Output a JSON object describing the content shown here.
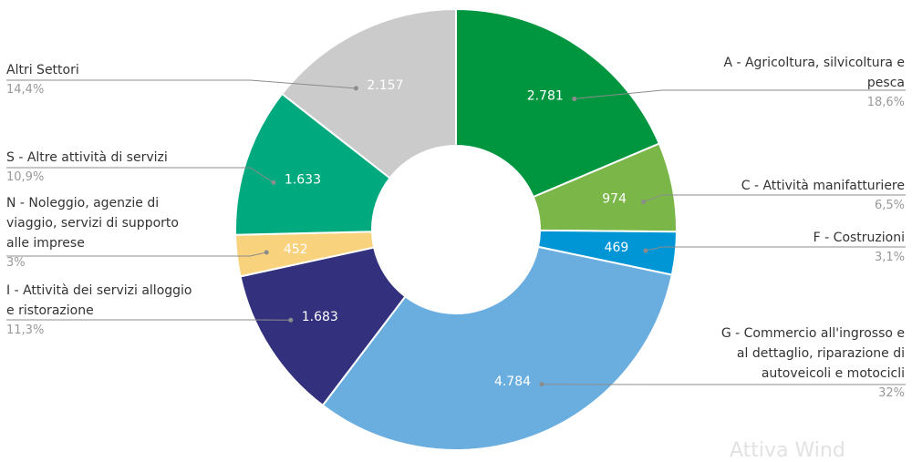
{
  "chart_data": {
    "type": "pie",
    "donut": true,
    "slices": [
      {
        "label": "A - Agricoltura, silvicoltura e pesca",
        "value_label": "2.781",
        "value": 2781,
        "percent_label": "18,6%",
        "color": "#009640",
        "side": "right"
      },
      {
        "label": "C - Attività manifatturiere",
        "value_label": "974",
        "value": 974,
        "percent_label": "6,5%",
        "color": "#7ab648",
        "side": "right"
      },
      {
        "label": "F - Costruzioni",
        "value_label": "469",
        "value": 469,
        "percent_label": "3,1%",
        "color": "#0096d6",
        "side": "right"
      },
      {
        "label": "G - Commercio all'ingrosso e al dettaglio, riparazione di autoveicoli e motocicli",
        "value_label": "4.784",
        "value": 4784,
        "percent_label": "32%",
        "color": "#6aaee0",
        "side": "right"
      },
      {
        "label": "I - Attività dei servizi alloggio e ristorazione",
        "value_label": "1.683",
        "value": 1683,
        "percent_label": "11,3%",
        "color": "#33307e",
        "side": "left"
      },
      {
        "label": "N - Noleggio, agenzie di viaggio, servizi di supporto alle imprese",
        "value_label": "452",
        "value": 452,
        "percent_label": "3%",
        "color": "#f9d27d",
        "side": "left"
      },
      {
        "label": "S - Altre attività di servizi",
        "value_label": "1.633",
        "value": 1633,
        "percent_label": "10,9%",
        "color": "#00a97e",
        "side": "left"
      },
      {
        "label": "Altri Settori",
        "value_label": "2.157",
        "value": 2157,
        "percent_label": "14,4%",
        "color": "#cbcbcb",
        "side": "left"
      }
    ]
  },
  "watermark": "Attiva Wind"
}
